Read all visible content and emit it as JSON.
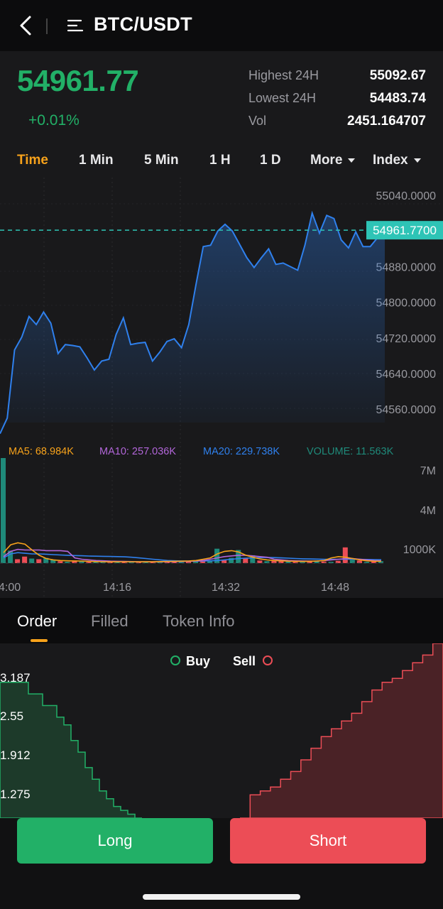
{
  "header": {
    "title": "BTC/USDT",
    "back_icon": "chevron-left-icon",
    "menu_icon": "menu-lines-icon"
  },
  "ticker": {
    "last_price": "54961.77",
    "change": "+0.01%",
    "stats": [
      {
        "label": "Highest 24H",
        "value": "55092.67"
      },
      {
        "label": "Lowest 24H",
        "value": "54483.74"
      },
      {
        "label": "Vol",
        "value": "2451.164707"
      }
    ]
  },
  "timeframes": [
    {
      "label": "Time",
      "active": true
    },
    {
      "label": "1 Min"
    },
    {
      "label": "5 Min"
    },
    {
      "label": "1 H"
    },
    {
      "label": "1 D"
    },
    {
      "label": "More",
      "dropdown": true
    },
    {
      "label": "Index",
      "dropdown": true
    }
  ],
  "colors": {
    "up": "#22b067",
    "down": "#ec4d56",
    "accent": "#f7a21b",
    "line": "#2f80ed",
    "ma5": "#f7a21b",
    "ma10": "#b266d9",
    "ma20": "#2f80ed",
    "volume": "#1f8a7a"
  },
  "chart_data": {
    "type": "line",
    "price_axis": [
      "55040.0000",
      "54880.0000",
      "54800.0000",
      "54720.0000",
      "54640.0000",
      "54560.0000"
    ],
    "ylim": [
      54530,
      55080
    ],
    "last_price_label": "54961.7700",
    "last_price": 54961.77,
    "time_axis": [
      "4:00",
      "14:16",
      "14:32",
      "14:48"
    ],
    "price_series": [
      54505,
      54540,
      54693,
      54722,
      54768,
      54750,
      54778,
      54753,
      54685,
      54705,
      54703,
      54700,
      54675,
      54648,
      54668,
      54672,
      54728,
      54765,
      54705,
      54708,
      54710,
      54668,
      54688,
      54712,
      54718,
      54698,
      54750,
      54840,
      54925,
      54928,
      54960,
      54975,
      54960,
      54930,
      54900,
      54878,
      54900,
      54920,
      54885,
      54888,
      54880,
      54872,
      54928,
      55000,
      54955,
      54995,
      54988,
      54940,
      54922,
      54958,
      54925,
      54925,
      54945,
      54961.77
    ],
    "indicators": [
      {
        "label": "MA5: 68.984K",
        "color": "#f7a21b"
      },
      {
        "label": "MA10: 257.036K",
        "color": "#b266d9"
      },
      {
        "label": "MA20: 229.738K",
        "color": "#2f80ed"
      },
      {
        "label": "VOLUME: 11.563K",
        "color": "#1f8a7a"
      }
    ],
    "volume_axis": [
      "7M",
      "4M",
      "1000K"
    ],
    "volume_max": 8000,
    "volume_series": [
      8000,
      950,
      300,
      500,
      350,
      300,
      400,
      250,
      150,
      100,
      200,
      150,
      120,
      100,
      100,
      80,
      120,
      100,
      120,
      90,
      100,
      110,
      120,
      150,
      120,
      180,
      150,
      200,
      250,
      200,
      1100,
      250,
      400,
      1000,
      350,
      600,
      200,
      150,
      200,
      150,
      180,
      100,
      100,
      140,
      200,
      120,
      100,
      180,
      1200,
      250,
      200,
      100,
      120,
      150
    ],
    "volume_colors": [
      "g",
      "g",
      "r",
      "r",
      "g",
      "r",
      "g",
      "g",
      "r",
      "g",
      "r",
      "g",
      "r",
      "g",
      "g",
      "r",
      "g",
      "r",
      "g",
      "r",
      "g",
      "r",
      "g",
      "r",
      "r",
      "g",
      "r",
      "g",
      "r",
      "g",
      "g",
      "r",
      "g",
      "g",
      "r",
      "g",
      "r",
      "g",
      "r",
      "r",
      "g",
      "r",
      "g",
      "r",
      "g",
      "r",
      "g",
      "r",
      "r",
      "g",
      "r",
      "g",
      "r",
      "g"
    ],
    "ma5_series": [
      800,
      1400,
      1550,
      1450,
      1000,
      600,
      350,
      250,
      200,
      180,
      170,
      160,
      140,
      120,
      110,
      100,
      100,
      110,
      110,
      100,
      100,
      105,
      120,
      130,
      140,
      150,
      170,
      200,
      300,
      400,
      700,
      900,
      950,
      850,
      600,
      450,
      320,
      250,
      200,
      180,
      150,
      140,
      130,
      140,
      160,
      200,
      400,
      500,
      450,
      350,
      250,
      180,
      150,
      140
    ],
    "ma10_series": [
      500,
      900,
      1050,
      1000,
      1000,
      1000,
      950,
      950,
      950,
      900,
      400,
      300,
      250,
      200,
      180,
      150,
      140,
      130,
      120,
      110,
      110,
      105,
      105,
      110,
      120,
      130,
      140,
      160,
      200,
      300,
      400,
      500,
      550,
      600,
      600,
      550,
      500,
      450,
      300,
      250,
      200,
      180,
      170,
      160,
      170,
      200,
      250,
      300,
      350,
      350,
      300,
      250,
      200,
      180
    ],
    "ma20_series": [
      400,
      700,
      800,
      750,
      700,
      700,
      680,
      650,
      620,
      600,
      580,
      560,
      540,
      530,
      520,
      510,
      500,
      480,
      450,
      400,
      350,
      300,
      250,
      200,
      180,
      170,
      160,
      160,
      170,
      180,
      200,
      250,
      300,
      350,
      380,
      400,
      420,
      430,
      420,
      400,
      380,
      350,
      330,
      320,
      310,
      300,
      300,
      300,
      300,
      300,
      290,
      280,
      270,
      260
    ]
  },
  "bottom_tabs": [
    {
      "label": "Order",
      "active": true
    },
    {
      "label": "Filled"
    },
    {
      "label": "Token Info"
    }
  ],
  "depth": {
    "legend_buy": "Buy",
    "legend_sell": "Sell",
    "y_labels": [
      "3.187",
      "2.55",
      "1.912",
      "1.275"
    ],
    "bids": [
      3.5,
      3.5,
      3.5,
      3.5,
      3.2,
      3.2,
      2.9,
      2.9,
      2.6,
      2.4,
      2.0,
      1.7,
      1.3,
      1.0,
      0.7,
      0.5,
      0.3,
      0.2,
      0.1,
      0.0
    ],
    "asks": [
      0.0,
      0.6,
      0.7,
      0.8,
      1.0,
      1.2,
      1.5,
      1.8,
      2.1,
      2.3,
      2.5,
      2.7,
      3.0,
      3.3,
      3.5,
      3.6,
      3.8,
      4.0,
      4.2,
      4.5
    ]
  },
  "actions": {
    "long": "Long",
    "short": "Short"
  }
}
